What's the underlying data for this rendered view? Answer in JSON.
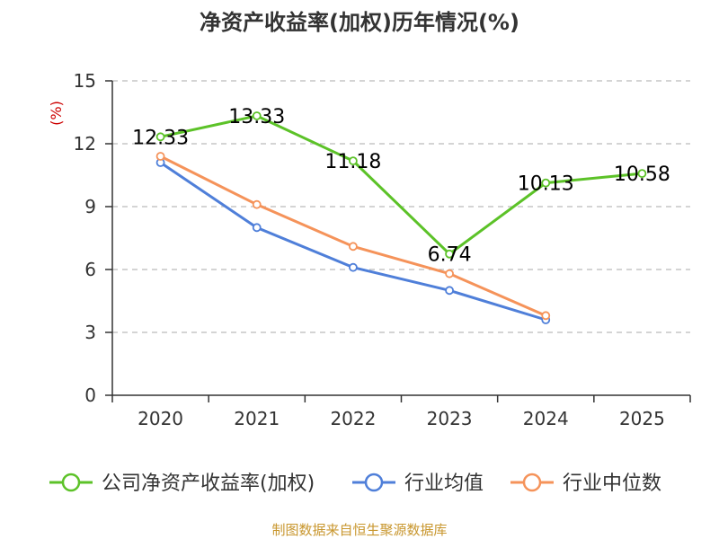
{
  "chart_data": {
    "type": "line",
    "title": "净资产收益率(加权)历年情况(%)",
    "ylabel": "(%)",
    "categories": [
      "2020",
      "2021",
      "2022",
      "2023",
      "2024",
      "2025"
    ],
    "ylim": [
      0,
      15
    ],
    "yticks": [
      0,
      3,
      6,
      9,
      12,
      15
    ],
    "grid": "horizontal-dashed",
    "legend": "bottom",
    "series": [
      {
        "name": "公司净资产收益率(加权)",
        "color": "#5cc228",
        "values": [
          12.33,
          13.33,
          11.18,
          6.74,
          10.13,
          10.58
        ],
        "labels": [
          "12.33",
          "13.33",
          "11.18",
          "6.74",
          "10.13",
          "10.58"
        ]
      },
      {
        "name": "行业均值",
        "color": "#4f7fd9",
        "values": [
          11.1,
          8.0,
          6.1,
          5.0,
          3.6,
          null
        ]
      },
      {
        "name": "行业中位数",
        "color": "#f5935a",
        "values": [
          11.4,
          9.1,
          7.1,
          5.8,
          3.8,
          null
        ]
      }
    ]
  },
  "source": "制图数据来自恒生聚源数据库",
  "colors": {
    "unit": "#cc0000",
    "source": "#c8962d",
    "axis": "#333333",
    "grid": "#bbbbbb"
  }
}
